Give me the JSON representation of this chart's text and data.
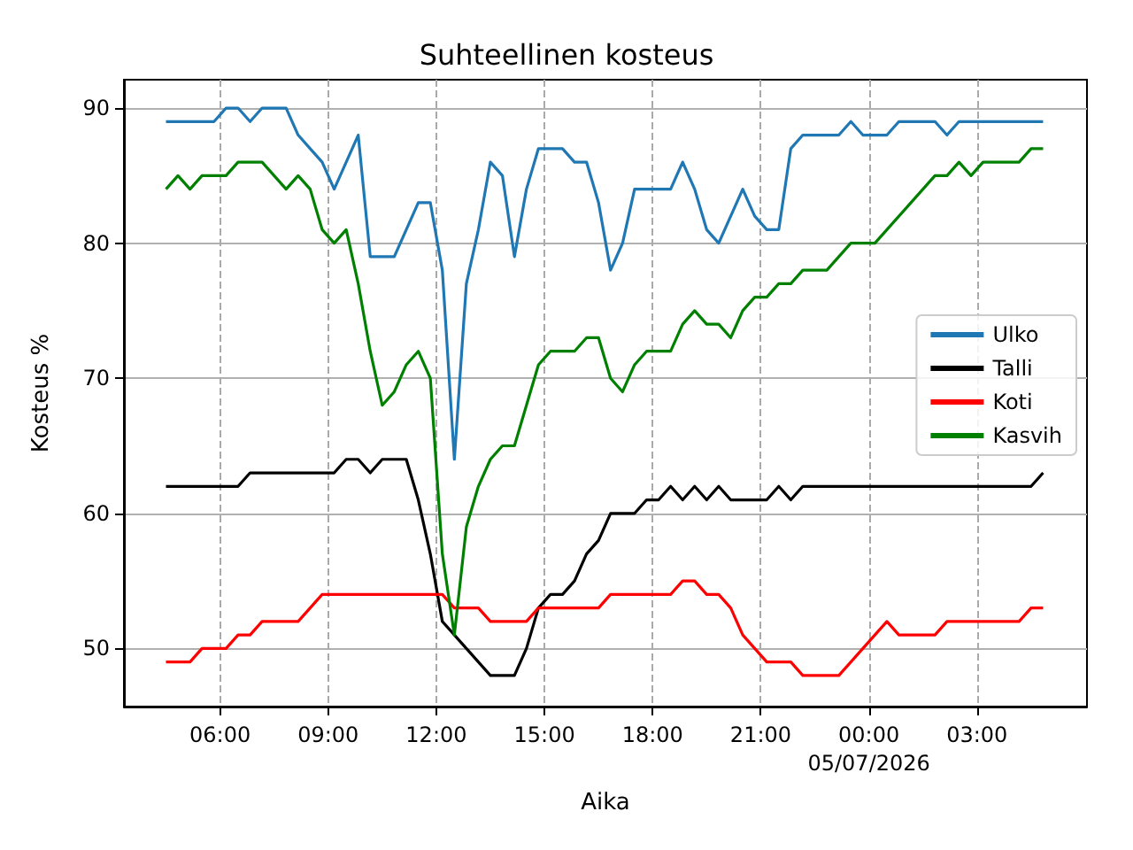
{
  "chart_data": {
    "type": "line",
    "title": "Suhteellinen kosteus",
    "xlabel": "Aika",
    "ylabel": "Kosteus %",
    "x": [
      "2026-07-04T04:30",
      "2026-07-04T04:50",
      "2026-07-04T05:10",
      "2026-07-04T05:30",
      "2026-07-04T05:50",
      "2026-07-04T06:10",
      "2026-07-04T06:30",
      "2026-07-04T06:50",
      "2026-07-04T07:10",
      "2026-07-04T07:30",
      "2026-07-04T07:50",
      "2026-07-04T08:10",
      "2026-07-04T08:30",
      "2026-07-04T08:50",
      "2026-07-04T09:10",
      "2026-07-04T09:30",
      "2026-07-04T09:50",
      "2026-07-04T10:10",
      "2026-07-04T10:30",
      "2026-07-04T10:50",
      "2026-07-04T11:10",
      "2026-07-04T11:30",
      "2026-07-04T11:50",
      "2026-07-04T12:10",
      "2026-07-04T12:30",
      "2026-07-04T12:50",
      "2026-07-04T13:10",
      "2026-07-04T13:30",
      "2026-07-04T13:50",
      "2026-07-04T14:10",
      "2026-07-04T14:30",
      "2026-07-04T14:50",
      "2026-07-04T15:10",
      "2026-07-04T15:30",
      "2026-07-04T15:50",
      "2026-07-04T16:10",
      "2026-07-04T16:30",
      "2026-07-04T16:50",
      "2026-07-04T17:10",
      "2026-07-04T17:30",
      "2026-07-04T17:50",
      "2026-07-04T18:10",
      "2026-07-04T18:30",
      "2026-07-04T18:50",
      "2026-07-04T19:10",
      "2026-07-04T19:30",
      "2026-07-04T19:50",
      "2026-07-04T20:10",
      "2026-07-04T20:30",
      "2026-07-04T20:50",
      "2026-07-04T21:10",
      "2026-07-04T21:30",
      "2026-07-04T21:50",
      "2026-07-04T22:10",
      "2026-07-04T22:30",
      "2026-07-04T22:50",
      "2026-07-04T23:10",
      "2026-07-04T23:30",
      "2026-07-04T23:50",
      "2026-07-05T00:10",
      "2026-07-05T00:30",
      "2026-07-05T00:50",
      "2026-07-05T01:10",
      "2026-07-05T01:30",
      "2026-07-05T01:50",
      "2026-07-05T02:10",
      "2026-07-05T02:30",
      "2026-07-05T02:50",
      "2026-07-05T03:10",
      "2026-07-05T03:30",
      "2026-07-05T03:50",
      "2026-07-05T04:10",
      "2026-07-05T04:30",
      "2026-07-05T04:50"
    ],
    "series": [
      {
        "name": "Ulko",
        "color": "#1f77b4",
        "values": [
          89,
          89,
          89,
          89,
          89,
          90,
          90,
          89,
          90,
          90,
          90,
          88,
          87,
          86,
          84,
          86,
          88,
          79,
          79,
          79,
          81,
          83,
          83,
          78,
          64,
          77,
          81,
          86,
          85,
          79,
          84,
          87,
          87,
          87,
          86,
          86,
          83,
          78,
          80,
          84,
          84,
          84,
          84,
          86,
          84,
          81,
          80,
          82,
          84,
          82,
          81,
          81,
          87,
          88,
          88,
          88,
          88,
          89,
          88,
          88,
          88,
          89,
          89,
          89,
          89,
          88,
          89,
          89,
          89,
          89,
          89,
          89,
          89,
          89
        ]
      },
      {
        "name": "Talli",
        "color": "#000000",
        "values": [
          62,
          62,
          62,
          62,
          62,
          62,
          62,
          63,
          63,
          63,
          63,
          63,
          63,
          63,
          63,
          64,
          64,
          63,
          64,
          64,
          64,
          61,
          57,
          52,
          51,
          50,
          49,
          48,
          48,
          48,
          50,
          53,
          54,
          54,
          55,
          57,
          58,
          60,
          60,
          60,
          61,
          61,
          62,
          61,
          62,
          61,
          62,
          61,
          61,
          61,
          61,
          62,
          61,
          62,
          62,
          62,
          62,
          62,
          62,
          62,
          62,
          62,
          62,
          62,
          62,
          62,
          62,
          62,
          62,
          62,
          62,
          62,
          62,
          63
        ]
      },
      {
        "name": "Koti",
        "color": "#ff0000",
        "values": [
          49,
          49,
          49,
          50,
          50,
          50,
          51,
          51,
          52,
          52,
          52,
          52,
          53,
          54,
          54,
          54,
          54,
          54,
          54,
          54,
          54,
          54,
          54,
          54,
          53,
          53,
          53,
          52,
          52,
          52,
          52,
          53,
          53,
          53,
          53,
          53,
          53,
          54,
          54,
          54,
          54,
          54,
          54,
          55,
          55,
          54,
          54,
          53,
          51,
          50,
          49,
          49,
          49,
          48,
          48,
          48,
          48,
          49,
          50,
          51,
          52,
          51,
          51,
          51,
          51,
          52,
          52,
          52,
          52,
          52,
          52,
          52,
          53,
          53
        ]
      },
      {
        "name": "Kasvih",
        "color": "#008000",
        "values": [
          84,
          85,
          84,
          85,
          85,
          85,
          86,
          86,
          86,
          85,
          84,
          85,
          84,
          81,
          80,
          81,
          77,
          72,
          68,
          69,
          71,
          72,
          70,
          57,
          51,
          59,
          62,
          64,
          65,
          65,
          68,
          71,
          72,
          72,
          72,
          73,
          73,
          70,
          69,
          71,
          72,
          72,
          72,
          74,
          75,
          74,
          74,
          73,
          75,
          76,
          76,
          77,
          77,
          78,
          78,
          78,
          79,
          80,
          80,
          80,
          81,
          82,
          83,
          84,
          85,
          85,
          86,
          85,
          86,
          86,
          86,
          86,
          87,
          87
        ]
      }
    ],
    "xlim": [
      "2026-07-04T03:20",
      "2026-07-05T06:03"
    ],
    "xticks": [
      {
        "value": "2026-07-04T06:00",
        "label": "06:00"
      },
      {
        "value": "2026-07-04T09:00",
        "label": "09:00"
      },
      {
        "value": "2026-07-04T12:00",
        "label": "12:00"
      },
      {
        "value": "2026-07-04T15:00",
        "label": "15:00"
      },
      {
        "value": "2026-07-04T18:00",
        "label": "18:00"
      },
      {
        "value": "2026-07-04T21:00",
        "label": "21:00"
      },
      {
        "value": "2026-07-05T00:00",
        "label": "00:00\n05/07/2026"
      },
      {
        "value": "2026-07-05T03:00",
        "label": "03:00"
      }
    ],
    "ylim": [
      45.7,
      92.1
    ],
    "yticks": [
      50,
      60,
      70,
      80,
      90
    ],
    "grid": true,
    "legend": "right",
    "line_style": "solid",
    "marker": "none"
  }
}
